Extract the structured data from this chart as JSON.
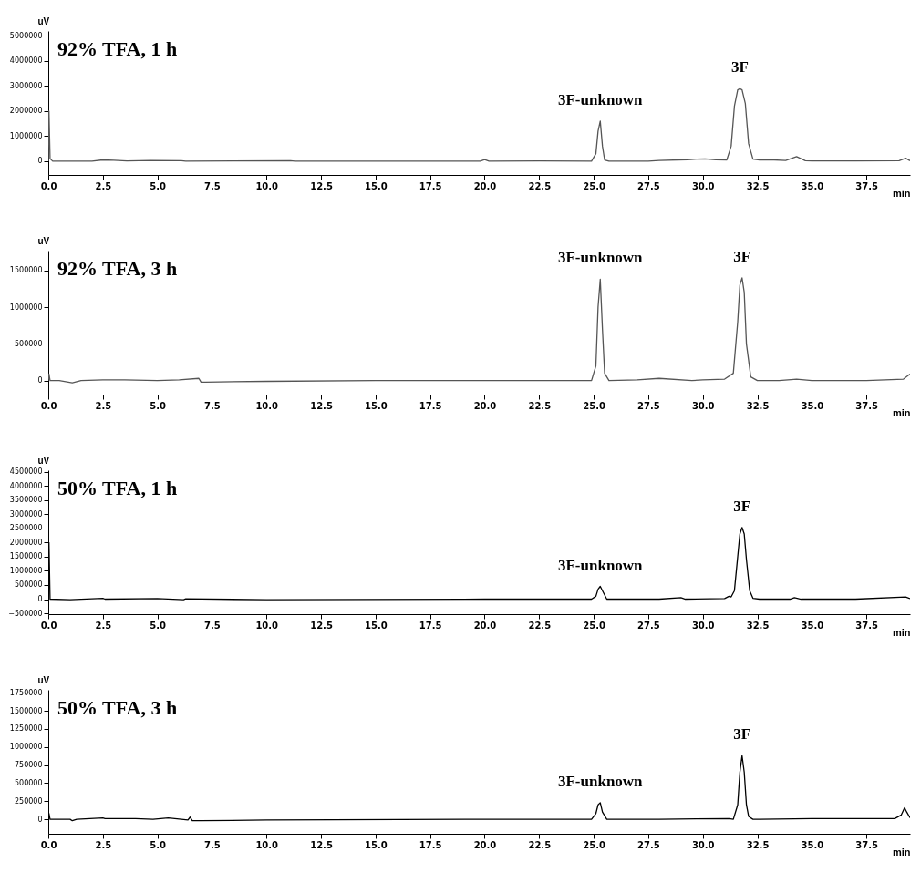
{
  "chart_data": [
    {
      "type": "line",
      "title": "92% TFA, 1 h",
      "xlabel": "min",
      "ylabel": "uV",
      "x": [
        0,
        0.03,
        0.08,
        0.2,
        2.0,
        2.5,
        3.0,
        3.6,
        4.7,
        6.1,
        6.3,
        11.1,
        11.3,
        19.8,
        20.0,
        20.2,
        22.5,
        24.9,
        25.1,
        25.2,
        25.3,
        25.4,
        25.5,
        25.7,
        27.5,
        28.0,
        29.3,
        29.7,
        30.1,
        30.6,
        31.1,
        31.3,
        31.45,
        31.6,
        31.7,
        31.8,
        31.95,
        32.1,
        32.3,
        32.6,
        33.0,
        33.8,
        34.3,
        34.7,
        35.0,
        37.0,
        39.0,
        39.3,
        39.5
      ],
      "series": [
        {
          "color": "#555555",
          "values": [
            0,
            2000000,
            100000,
            0,
            0,
            50000,
            40000,
            10000,
            30000,
            20000,
            0,
            20000,
            0,
            0,
            60000,
            0,
            10000,
            0,
            300000,
            1200000,
            1600000,
            600000,
            50000,
            0,
            0,
            30000,
            60000,
            80000,
            90000,
            60000,
            50000,
            600000,
            2200000,
            2850000,
            2900000,
            2850000,
            2300000,
            700000,
            80000,
            50000,
            60000,
            30000,
            180000,
            20000,
            10000,
            10000,
            20000,
            120000,
            20000
          ]
        }
      ],
      "xlim": [
        0,
        39.5
      ],
      "ylim": [
        -550000,
        5200000
      ],
      "xticks": [
        {
          "value": 0,
          "label": "0.0"
        },
        {
          "value": 2.5,
          "label": "2.5"
        },
        {
          "value": 5,
          "label": "5.0"
        },
        {
          "value": 7.5,
          "label": "7.5"
        },
        {
          "value": 10,
          "label": "10.0"
        },
        {
          "value": 12.5,
          "label": "12.5"
        },
        {
          "value": 15,
          "label": "15.0"
        },
        {
          "value": 17.5,
          "label": "17.5"
        },
        {
          "value": 20,
          "label": "20.0"
        },
        {
          "value": 22.5,
          "label": "22.5"
        },
        {
          "value": 25,
          "label": "25.0"
        },
        {
          "value": 27.5,
          "label": "27.5"
        },
        {
          "value": 30,
          "label": "30.0"
        },
        {
          "value": 32.5,
          "label": "32.5"
        },
        {
          "value": 35,
          "label": "35.0"
        },
        {
          "value": 37.5,
          "label": "37.5"
        }
      ],
      "yticks": [
        0,
        1000000,
        2000000,
        3000000,
        4000000,
        5000000
      ],
      "annotations": [
        {
          "text": "3F-unknown",
          "x": 25.3,
          "y": 1600000
        },
        {
          "text": "3F",
          "x": 31.7,
          "y": 2900000
        }
      ]
    },
    {
      "type": "line",
      "title": "92% TFA, 3 h",
      "xlabel": "min",
      "ylabel": "uV",
      "x": [
        0,
        0.03,
        0.08,
        0.5,
        1.1,
        1.5,
        2.5,
        3.5,
        5.0,
        6.0,
        6.9,
        7.0,
        7.2,
        10.0,
        15.0,
        20.0,
        24.9,
        25.1,
        25.2,
        25.3,
        25.4,
        25.5,
        25.7,
        27.0,
        28.0,
        29.5,
        30.0,
        31.0,
        31.4,
        31.6,
        31.7,
        31.8,
        31.9,
        32.0,
        32.2,
        32.5,
        33.5,
        34.3,
        35.0,
        37.5,
        39.2,
        39.5
      ],
      "series": [
        {
          "color": "#555555",
          "values": [
            0,
            90000,
            0,
            0,
            -30000,
            0,
            10000,
            10000,
            0,
            10000,
            30000,
            -20000,
            -20000,
            -10000,
            0,
            0,
            0,
            200000,
            1000000,
            1380000,
            700000,
            100000,
            0,
            10000,
            30000,
            0,
            10000,
            20000,
            100000,
            800000,
            1300000,
            1400000,
            1200000,
            500000,
            50000,
            0,
            0,
            20000,
            0,
            0,
            20000,
            90000
          ]
        }
      ],
      "xlim": [
        0,
        39.5
      ],
      "ylim": [
        -190000,
        1770000
      ],
      "xticks": [
        {
          "value": 0,
          "label": "0.0"
        },
        {
          "value": 2.5,
          "label": "2.5"
        },
        {
          "value": 5,
          "label": "5.0"
        },
        {
          "value": 7.5,
          "label": "7.5"
        },
        {
          "value": 10,
          "label": "10.0"
        },
        {
          "value": 12.5,
          "label": "12.5"
        },
        {
          "value": 15,
          "label": "15.0"
        },
        {
          "value": 17.5,
          "label": "17.5"
        },
        {
          "value": 20,
          "label": "20.0"
        },
        {
          "value": 22.5,
          "label": "22.5"
        },
        {
          "value": 25,
          "label": "25.0"
        },
        {
          "value": 27.5,
          "label": "27.5"
        },
        {
          "value": 30,
          "label": "30.0"
        },
        {
          "value": 32.5,
          "label": "32.5"
        },
        {
          "value": 35,
          "label": "35.0"
        },
        {
          "value": 37.5,
          "label": "37.5"
        }
      ],
      "yticks": [
        0,
        500000,
        1000000,
        1500000
      ],
      "annotations": [
        {
          "text": "3F-unknown",
          "x": 25.3,
          "y": 1380000
        },
        {
          "text": "3F",
          "x": 31.8,
          "y": 1400000
        }
      ]
    },
    {
      "type": "line",
      "title": "50% TFA, 1 h",
      "xlabel": "min",
      "ylabel": "uV",
      "x": [
        0,
        0.03,
        0.08,
        1.0,
        2.5,
        2.6,
        5.0,
        6.2,
        6.3,
        10.0,
        20.0,
        24.9,
        25.1,
        25.2,
        25.3,
        25.4,
        25.6,
        28.0,
        29.0,
        29.2,
        31.0,
        31.2,
        31.3,
        31.45,
        31.6,
        31.7,
        31.8,
        31.9,
        32.0,
        32.15,
        32.3,
        32.6,
        34.0,
        34.2,
        34.5,
        37.0,
        39.3,
        39.5
      ],
      "series": [
        {
          "color": "#000000",
          "values": [
            0,
            2000000,
            0,
            -20000,
            30000,
            0,
            20000,
            -20000,
            10000,
            -20000,
            0,
            0,
            100000,
            350000,
            450000,
            300000,
            0,
            0,
            50000,
            0,
            20000,
            100000,
            80000,
            300000,
            1500000,
            2300000,
            2530000,
            2300000,
            1400000,
            300000,
            30000,
            0,
            0,
            50000,
            0,
            0,
            80000,
            20000
          ]
        }
      ],
      "xlim": [
        0,
        39.5
      ],
      "ylim": [
        -530000,
        4550000
      ],
      "xticks": [
        {
          "value": 0,
          "label": "0.0"
        },
        {
          "value": 2.5,
          "label": "2.5"
        },
        {
          "value": 5,
          "label": "5.0"
        },
        {
          "value": 7.5,
          "label": "7.5"
        },
        {
          "value": 10,
          "label": "10.0"
        },
        {
          "value": 12.5,
          "label": "12.5"
        },
        {
          "value": 15,
          "label": "15.0"
        },
        {
          "value": 17.5,
          "label": "17.5"
        },
        {
          "value": 20,
          "label": "20.0"
        },
        {
          "value": 22.5,
          "label": "22.5"
        },
        {
          "value": 25,
          "label": "25.0"
        },
        {
          "value": 27.5,
          "label": "27.5"
        },
        {
          "value": 30,
          "label": "30.0"
        },
        {
          "value": 32.5,
          "label": "32.5"
        },
        {
          "value": 35,
          "label": "35.0"
        },
        {
          "value": 37.5,
          "label": "37.5"
        }
      ],
      "yticks": [
        -500000,
        0,
        500000,
        1000000,
        1500000,
        2000000,
        2500000,
        3000000,
        3500000,
        4000000,
        4500000
      ],
      "annotations": [
        {
          "text": "3F-unknown",
          "x": 25.3,
          "y": 450000
        },
        {
          "text": "3F",
          "x": 31.8,
          "y": 2530000
        }
      ]
    },
    {
      "type": "line",
      "title": "50% TFA, 3 h",
      "xlabel": "min",
      "ylabel": "uV",
      "x": [
        0,
        0.03,
        0.08,
        1.0,
        1.1,
        1.3,
        2.5,
        2.6,
        4.0,
        4.8,
        5.5,
        6.4,
        6.5,
        6.6,
        7.0,
        10.0,
        20.0,
        24.9,
        25.1,
        25.2,
        25.3,
        25.4,
        25.6,
        28.0,
        31.2,
        31.4,
        31.6,
        31.7,
        31.8,
        31.9,
        32.0,
        32.1,
        32.3,
        32.6,
        35.0,
        38.8,
        39.1,
        39.25,
        39.35,
        39.5
      ],
      "series": [
        {
          "color": "#000000",
          "values": [
            0,
            80000,
            0,
            0,
            -20000,
            0,
            20000,
            10000,
            10000,
            0,
            20000,
            -10000,
            30000,
            -20000,
            -20000,
            -10000,
            0,
            0,
            80000,
            200000,
            230000,
            100000,
            0,
            0,
            10000,
            0,
            200000,
            650000,
            880000,
            650000,
            200000,
            40000,
            0,
            0,
            10000,
            10000,
            60000,
            160000,
            100000,
            20000
          ]
        }
      ],
      "xlim": [
        0,
        39.5
      ],
      "ylim": [
        -200000,
        1790000
      ],
      "xticks": [
        {
          "value": 0,
          "label": "0.0"
        },
        {
          "value": 2.5,
          "label": "2.5"
        },
        {
          "value": 5,
          "label": "5.0"
        },
        {
          "value": 7.5,
          "label": "7.5"
        },
        {
          "value": 10,
          "label": "10.0"
        },
        {
          "value": 12.5,
          "label": "12.5"
        },
        {
          "value": 15,
          "label": "15.0"
        },
        {
          "value": 17.5,
          "label": "17.5"
        },
        {
          "value": 20,
          "label": "20.0"
        },
        {
          "value": 22.5,
          "label": "22.5"
        },
        {
          "value": 25,
          "label": "25.0"
        },
        {
          "value": 27.5,
          "label": "27.5"
        },
        {
          "value": 30,
          "label": "30.0"
        },
        {
          "value": 32.5,
          "label": "32.5"
        },
        {
          "value": 35,
          "label": "35.0"
        },
        {
          "value": 37.5,
          "label": "37.5"
        }
      ],
      "yticks": [
        0,
        250000,
        500000,
        750000,
        1000000,
        1250000,
        1500000,
        1750000
      ],
      "annotations": [
        {
          "text": "3F-unknown",
          "x": 25.3,
          "y": 230000
        },
        {
          "text": "3F",
          "x": 31.8,
          "y": 880000
        }
      ]
    }
  ]
}
